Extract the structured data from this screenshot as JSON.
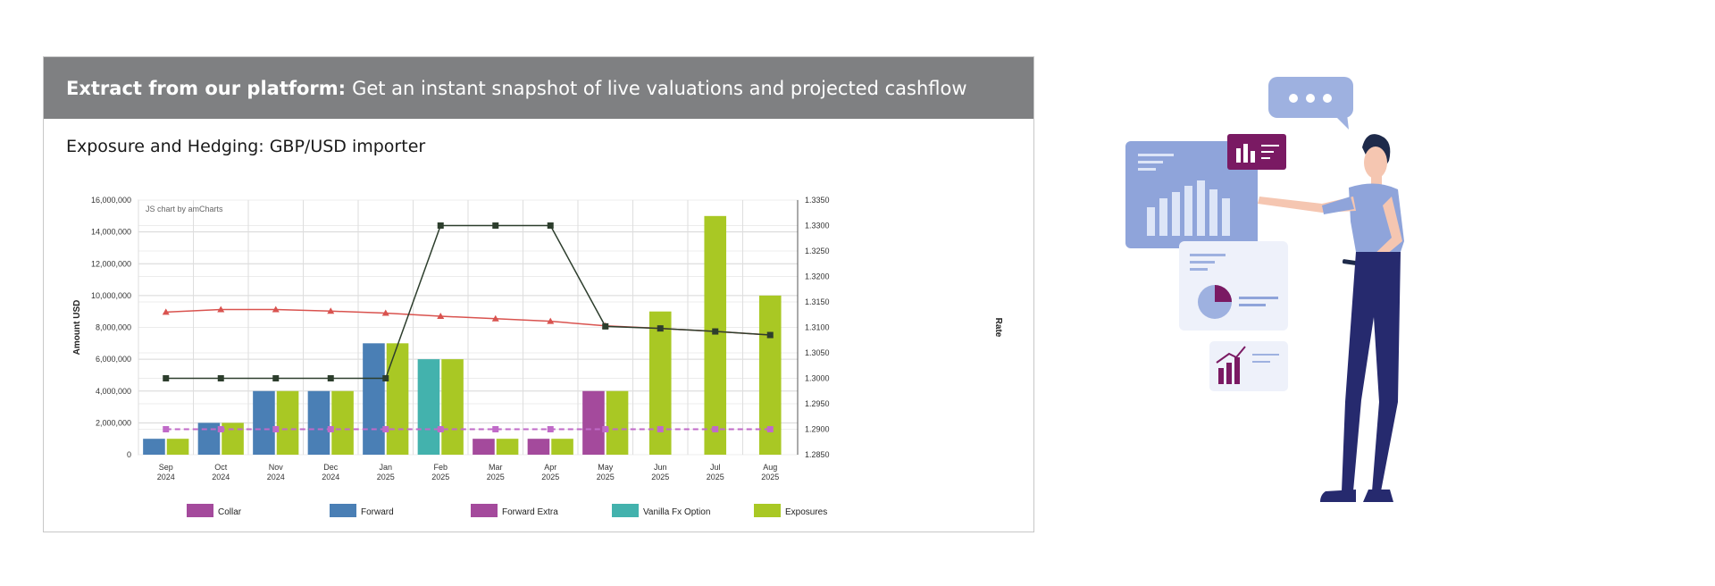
{
  "banner": {
    "bold": "Extract from our platform:",
    "text": "Get an instant snapshot of live valuations and projected cashflow"
  },
  "card_title": "Exposure and Hedging: GBP/USD importer",
  "chart_data": {
    "type": "bar",
    "credit": "JS chart by amCharts",
    "categories": [
      [
        "Sep",
        "2024"
      ],
      [
        "Oct",
        "2024"
      ],
      [
        "Nov",
        "2024"
      ],
      [
        "Dec",
        "2024"
      ],
      [
        "Jan",
        "2025"
      ],
      [
        "Feb",
        "2025"
      ],
      [
        "Mar",
        "2025"
      ],
      [
        "Apr",
        "2025"
      ],
      [
        "May",
        "2025"
      ],
      [
        "Jun",
        "2025"
      ],
      [
        "Jul",
        "2025"
      ],
      [
        "Aug",
        "2025"
      ]
    ],
    "ylabel": "Amount USD",
    "y2label": "Rate",
    "ylim": [
      0,
      16000000
    ],
    "yticks": [
      "0",
      "2,000,000",
      "4,000,000",
      "6,000,000",
      "8,000,000",
      "10,000,000",
      "12,000,000",
      "14,000,000",
      "16,000,000"
    ],
    "y2lim": [
      1.285,
      1.335
    ],
    "y2ticks": [
      "1.2850",
      "1.2900",
      "1.2950",
      "1.3000",
      "1.3050",
      "1.3100",
      "1.3150",
      "1.3200",
      "1.3250",
      "1.3300",
      "1.3350"
    ],
    "grid": true,
    "legend_placement": "bottom",
    "series": [
      {
        "name": "Collar",
        "color": "#a44a9c",
        "values": [
          0,
          0,
          0,
          0,
          0,
          0,
          0,
          0,
          0,
          0,
          0,
          0
        ]
      },
      {
        "name": "Forward",
        "color": "#4a7fb5",
        "values": [
          1000000,
          2000000,
          4000000,
          4000000,
          7000000,
          0,
          0,
          0,
          0,
          0,
          0,
          0
        ]
      },
      {
        "name": "Forward Extra",
        "color": "#a44a9c",
        "values": [
          0,
          0,
          0,
          0,
          0,
          0,
          1000000,
          1000000,
          4000000,
          0,
          0,
          0
        ]
      },
      {
        "name": "Vanilla Fx Option",
        "color": "#43b2ad",
        "values": [
          0,
          0,
          0,
          0,
          0,
          6000000,
          0,
          0,
          0,
          0,
          0,
          0
        ]
      },
      {
        "name": "Exposures",
        "color": "#a9c824",
        "values": [
          1000000,
          2000000,
          4000000,
          4000000,
          7000000,
          6000000,
          1000000,
          1000000,
          4000000,
          9000000,
          15000000,
          10000000
        ]
      }
    ],
    "rate_lines": [
      {
        "color": "#d9534f",
        "marker": "triangle",
        "values": [
          1.313,
          1.3135,
          1.3135,
          1.3132,
          1.3128,
          1.3122,
          1.3117,
          1.3112,
          1.3103,
          1.3098,
          1.3092,
          1.3085
        ]
      },
      {
        "color": "#2d3e2d",
        "marker": "square",
        "values": [
          1.3,
          1.3,
          1.3,
          1.3,
          1.3,
          1.33,
          1.33,
          1.33,
          1.3102,
          1.3098,
          1.3092,
          1.3085
        ]
      },
      {
        "color": "#c06ac8",
        "marker": "square",
        "dashed": true,
        "values": [
          1.29,
          1.29,
          1.29,
          1.29,
          1.29,
          1.29,
          1.29,
          1.29,
          1.29,
          1.29,
          1.29,
          1.29
        ]
      }
    ]
  },
  "illustration": {
    "chat_icon": "chat-bubble-icon",
    "bar_icon": "bar-chart-icon",
    "pie_icon": "pie-chart-icon",
    "trend_icon": "trend-chart-icon",
    "person": "person-figure"
  }
}
